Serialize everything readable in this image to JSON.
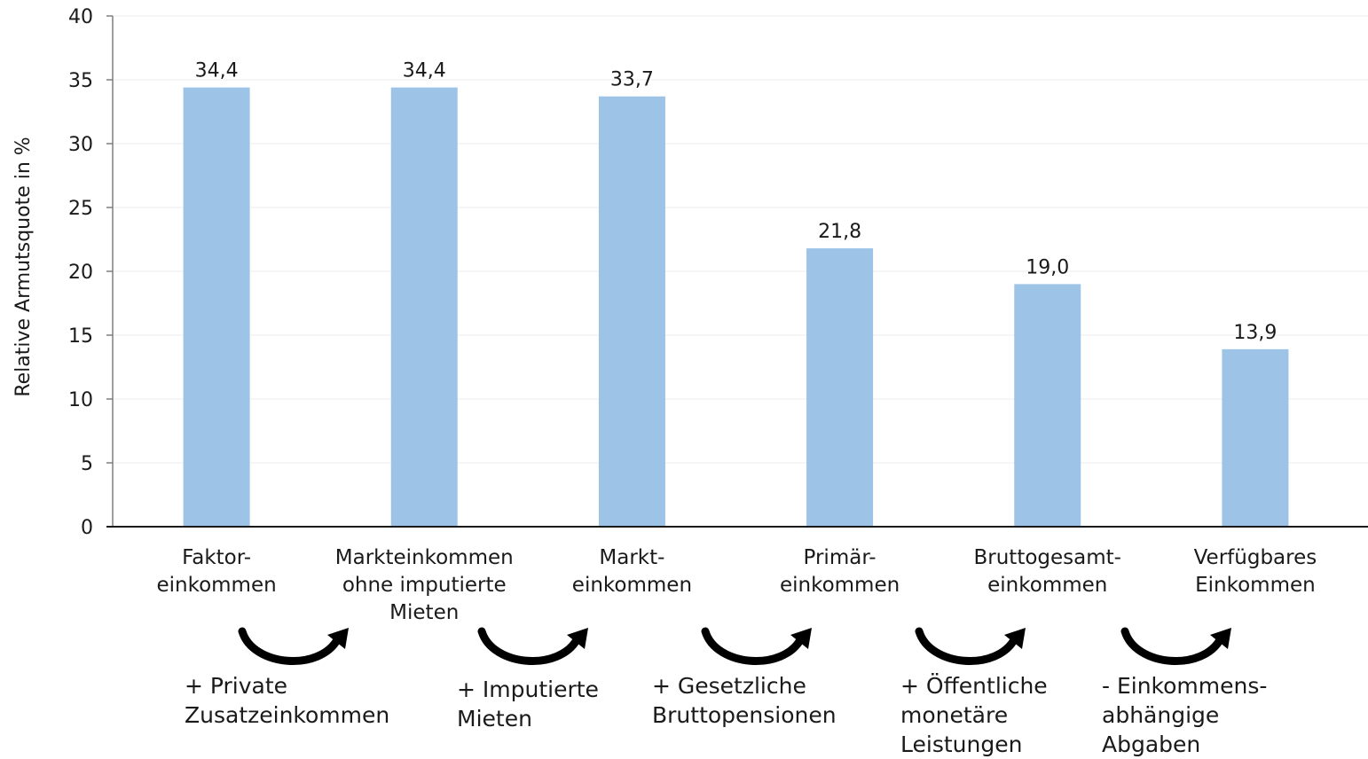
{
  "chart_data": {
    "type": "bar",
    "title": "",
    "xlabel": "",
    "ylabel": "Relative Armutsquote in %",
    "ylim": [
      0,
      40
    ],
    "yticks": [
      0,
      5,
      10,
      15,
      20,
      25,
      30,
      35,
      40
    ],
    "grid": true,
    "legend": "none",
    "bar_color": "#9dc3e6",
    "categories": [
      [
        "Faktor-",
        "einkommen"
      ],
      [
        "Markteinkommen",
        "ohne imputierte",
        "Mieten"
      ],
      [
        "Markt-",
        "einkommen"
      ],
      [
        "Primär-",
        "einkommen"
      ],
      [
        "Bruttogesamt-",
        "einkommen"
      ],
      [
        "Verfügbares",
        "Einkommen"
      ]
    ],
    "values": [
      34.4,
      34.4,
      33.7,
      21.8,
      19.0,
      13.9
    ],
    "data_labels": [
      "34,4",
      "34,4",
      "33,7",
      "21,8",
      "19,0",
      "13,9"
    ],
    "annotations": [
      [
        "+ Private",
        "Zusatzeinkommen"
      ],
      [
        "+ Imputierte",
        "Mieten"
      ],
      [
        "+ Gesetzliche",
        "Bruttopensionen"
      ],
      [
        "+ Öffentliche",
        "monetäre",
        "Leistungen"
      ],
      [
        "- Einkommens-",
        "abhängige",
        "Abgaben"
      ]
    ]
  }
}
